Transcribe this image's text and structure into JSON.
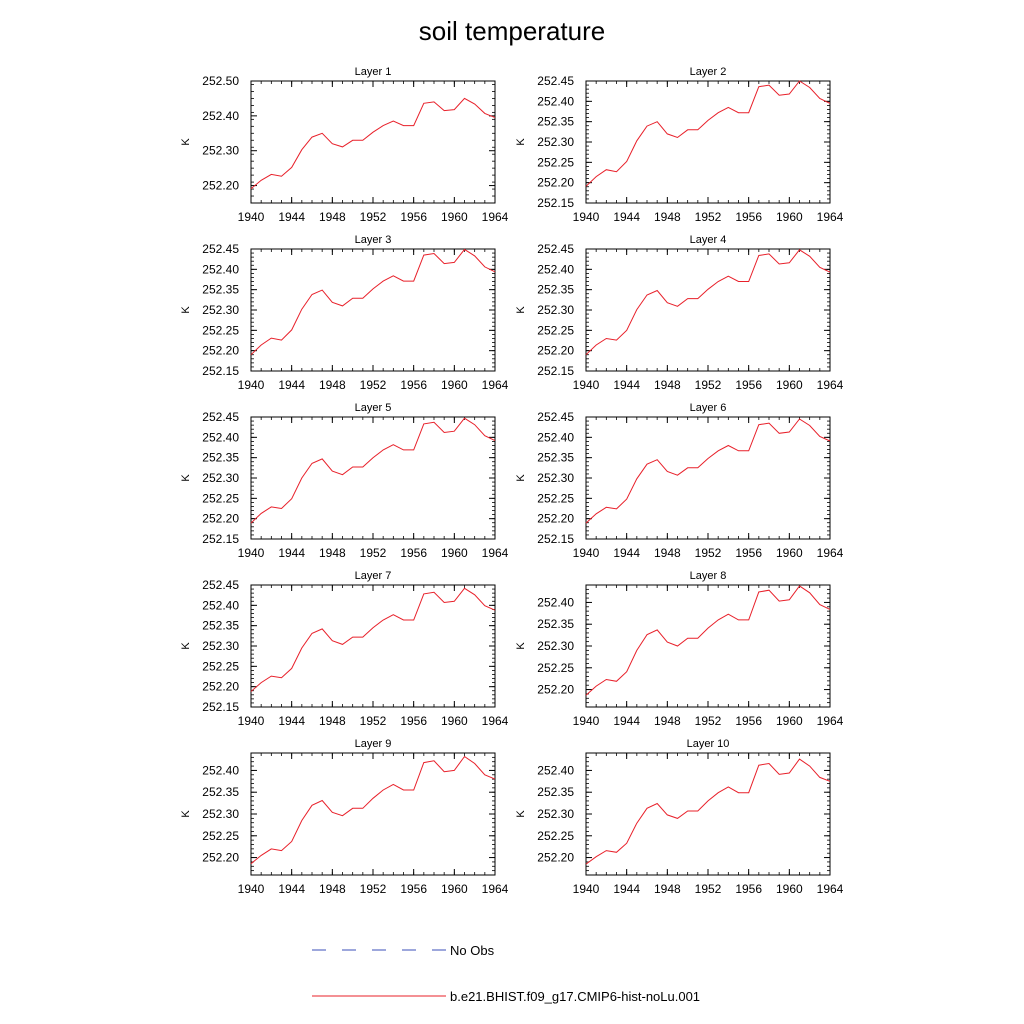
{
  "figure": {
    "title": "soil temperature",
    "legend": [
      {
        "label": "No Obs",
        "color": "#3b4fb8",
        "style": "dashed"
      },
      {
        "label": "b.e21.BHIST.f09_g17.CMIP6-hist-noLu.001",
        "color": "#e8202a",
        "style": "solid"
      }
    ]
  },
  "chart_data": [
    {
      "type": "line",
      "title": "Layer 1",
      "ylabel": "K",
      "xlim": [
        1940,
        1964
      ],
      "ylim": [
        252.15,
        252.5
      ],
      "xticks": [
        1940,
        1944,
        1948,
        1952,
        1956,
        1960,
        1964
      ],
      "yticks": [
        "252.20",
        "252.30",
        "252.40",
        "252.50"
      ],
      "x": [
        1940,
        1941,
        1942,
        1943,
        1944,
        1945,
        1946,
        1947,
        1948,
        1949,
        1950,
        1951,
        1952,
        1953,
        1954,
        1955,
        1956,
        1957,
        1958,
        1959,
        1960,
        1961,
        1962,
        1963,
        1964
      ],
      "series": [
        {
          "name": "b.e21.BHIST.f09_g17.CMIP6-hist-noLu.001",
          "values": [
            252.191,
            252.215,
            252.232,
            252.227,
            252.252,
            252.303,
            252.339,
            252.35,
            252.32,
            252.311,
            252.33,
            252.33,
            252.353,
            252.372,
            252.385,
            252.372,
            252.372,
            252.436,
            252.44,
            252.415,
            252.418,
            252.45,
            252.434,
            252.407,
            252.395
          ]
        }
      ]
    },
    {
      "type": "line",
      "title": "Layer 2",
      "ylabel": "K",
      "xlim": [
        1940,
        1964
      ],
      "ylim": [
        252.15,
        252.45
      ],
      "xticks": [
        1940,
        1944,
        1948,
        1952,
        1956,
        1960,
        1964
      ],
      "yticks": [
        "252.15",
        "252.20",
        "252.25",
        "252.30",
        "252.35",
        "252.40",
        "252.45"
      ],
      "x": [
        1940,
        1941,
        1942,
        1943,
        1944,
        1945,
        1946,
        1947,
        1948,
        1949,
        1950,
        1951,
        1952,
        1953,
        1954,
        1955,
        1956,
        1957,
        1958,
        1959,
        1960,
        1961,
        1962,
        1963,
        1964
      ],
      "series": [
        {
          "name": "b.e21.BHIST.f09_g17.CMIP6-hist-noLu.001",
          "values": [
            252.191,
            252.215,
            252.232,
            252.227,
            252.252,
            252.303,
            252.339,
            252.35,
            252.32,
            252.311,
            252.33,
            252.33,
            252.353,
            252.372,
            252.385,
            252.372,
            252.372,
            252.436,
            252.44,
            252.415,
            252.418,
            252.45,
            252.434,
            252.407,
            252.395
          ]
        }
      ]
    },
    {
      "type": "line",
      "title": "Layer 3",
      "ylabel": "K",
      "xlim": [
        1940,
        1964
      ],
      "ylim": [
        252.15,
        252.45
      ],
      "xticks": [
        1940,
        1944,
        1948,
        1952,
        1956,
        1960,
        1964
      ],
      "yticks": [
        "252.15",
        "252.20",
        "252.25",
        "252.30",
        "252.35",
        "252.40",
        "252.45"
      ],
      "x": [
        1940,
        1941,
        1942,
        1943,
        1944,
        1945,
        1946,
        1947,
        1948,
        1949,
        1950,
        1951,
        1952,
        1953,
        1954,
        1955,
        1956,
        1957,
        1958,
        1959,
        1960,
        1961,
        1962,
        1963,
        1964
      ],
      "series": [
        {
          "name": "b.e21.BHIST.f09_g17.CMIP6-hist-noLu.001",
          "values": [
            252.19,
            252.214,
            252.231,
            252.226,
            252.251,
            252.302,
            252.338,
            252.349,
            252.319,
            252.31,
            252.329,
            252.329,
            252.352,
            252.371,
            252.384,
            252.371,
            252.371,
            252.435,
            252.439,
            252.414,
            252.417,
            252.449,
            252.433,
            252.406,
            252.394
          ]
        }
      ]
    },
    {
      "type": "line",
      "title": "Layer 4",
      "ylabel": "K",
      "xlim": [
        1940,
        1964
      ],
      "ylim": [
        252.15,
        252.45
      ],
      "xticks": [
        1940,
        1944,
        1948,
        1952,
        1956,
        1960,
        1964
      ],
      "yticks": [
        "252.15",
        "252.20",
        "252.25",
        "252.30",
        "252.35",
        "252.40",
        "252.45"
      ],
      "x": [
        1940,
        1941,
        1942,
        1943,
        1944,
        1945,
        1946,
        1947,
        1948,
        1949,
        1950,
        1951,
        1952,
        1953,
        1954,
        1955,
        1956,
        1957,
        1958,
        1959,
        1960,
        1961,
        1962,
        1963,
        1964
      ],
      "series": [
        {
          "name": "b.e21.BHIST.f09_g17.CMIP6-hist-noLu.001",
          "values": [
            252.19,
            252.214,
            252.23,
            252.226,
            252.25,
            252.301,
            252.337,
            252.348,
            252.318,
            252.309,
            252.328,
            252.328,
            252.351,
            252.37,
            252.383,
            252.37,
            252.37,
            252.434,
            252.438,
            252.413,
            252.416,
            252.448,
            252.432,
            252.405,
            252.393
          ]
        }
      ]
    },
    {
      "type": "line",
      "title": "Layer 5",
      "ylabel": "K",
      "xlim": [
        1940,
        1964
      ],
      "ylim": [
        252.15,
        252.45
      ],
      "xticks": [
        1940,
        1944,
        1948,
        1952,
        1956,
        1960,
        1964
      ],
      "yticks": [
        "252.15",
        "252.20",
        "252.25",
        "252.30",
        "252.35",
        "252.40",
        "252.45"
      ],
      "x": [
        1940,
        1941,
        1942,
        1943,
        1944,
        1945,
        1946,
        1947,
        1948,
        1949,
        1950,
        1951,
        1952,
        1953,
        1954,
        1955,
        1956,
        1957,
        1958,
        1959,
        1960,
        1961,
        1962,
        1963,
        1964
      ],
      "series": [
        {
          "name": "b.e21.BHIST.f09_g17.CMIP6-hist-noLu.001",
          "values": [
            252.189,
            252.213,
            252.229,
            252.225,
            252.249,
            252.3,
            252.336,
            252.347,
            252.317,
            252.308,
            252.327,
            252.327,
            252.35,
            252.369,
            252.382,
            252.369,
            252.369,
            252.433,
            252.437,
            252.412,
            252.415,
            252.447,
            252.431,
            252.404,
            252.392
          ]
        }
      ]
    },
    {
      "type": "line",
      "title": "Layer 6",
      "ylabel": "K",
      "xlim": [
        1940,
        1964
      ],
      "ylim": [
        252.15,
        252.45
      ],
      "xticks": [
        1940,
        1944,
        1948,
        1952,
        1956,
        1960,
        1964
      ],
      "yticks": [
        "252.15",
        "252.20",
        "252.25",
        "252.30",
        "252.35",
        "252.40",
        "252.45"
      ],
      "x": [
        1940,
        1941,
        1942,
        1943,
        1944,
        1945,
        1946,
        1947,
        1948,
        1949,
        1950,
        1951,
        1952,
        1953,
        1954,
        1955,
        1956,
        1957,
        1958,
        1959,
        1960,
        1961,
        1962,
        1963,
        1964
      ],
      "series": [
        {
          "name": "b.e21.BHIST.f09_g17.CMIP6-hist-noLu.001",
          "values": [
            252.189,
            252.212,
            252.228,
            252.224,
            252.248,
            252.298,
            252.334,
            252.345,
            252.316,
            252.307,
            252.325,
            252.325,
            252.348,
            252.367,
            252.38,
            252.367,
            252.367,
            252.431,
            252.435,
            252.41,
            252.413,
            252.445,
            252.429,
            252.402,
            252.391
          ]
        }
      ]
    },
    {
      "type": "line",
      "title": "Layer 7",
      "ylabel": "K",
      "xlim": [
        1940,
        1964
      ],
      "ylim": [
        252.15,
        252.45
      ],
      "xticks": [
        1940,
        1944,
        1948,
        1952,
        1956,
        1960,
        1964
      ],
      "yticks": [
        "252.15",
        "252.20",
        "252.25",
        "252.30",
        "252.35",
        "252.40",
        "252.45"
      ],
      "x": [
        1940,
        1941,
        1942,
        1943,
        1944,
        1945,
        1946,
        1947,
        1948,
        1949,
        1950,
        1951,
        1952,
        1953,
        1954,
        1955,
        1956,
        1957,
        1958,
        1959,
        1960,
        1961,
        1962,
        1963,
        1964
      ],
      "series": [
        {
          "name": "b.e21.BHIST.f09_g17.CMIP6-hist-noLu.001",
          "values": [
            252.188,
            252.21,
            252.226,
            252.222,
            252.245,
            252.295,
            252.331,
            252.342,
            252.313,
            252.304,
            252.322,
            252.322,
            252.345,
            252.364,
            252.377,
            252.364,
            252.364,
            252.428,
            252.432,
            252.407,
            252.41,
            252.442,
            252.426,
            252.399,
            252.388
          ]
        }
      ]
    },
    {
      "type": "line",
      "title": "Layer 8",
      "ylabel": "K",
      "xlim": [
        1940,
        1964
      ],
      "ylim": [
        252.16,
        252.44
      ],
      "xticks": [
        1940,
        1944,
        1948,
        1952,
        1956,
        1960,
        1964
      ],
      "yticks": [
        "252.20",
        "252.25",
        "252.30",
        "252.35",
        "252.40"
      ],
      "x": [
        1940,
        1941,
        1942,
        1943,
        1944,
        1945,
        1946,
        1947,
        1948,
        1949,
        1950,
        1951,
        1952,
        1953,
        1954,
        1955,
        1956,
        1957,
        1958,
        1959,
        1960,
        1961,
        1962,
        1963,
        1964
      ],
      "series": [
        {
          "name": "b.e21.BHIST.f09_g17.CMIP6-hist-noLu.001",
          "values": [
            252.187,
            252.208,
            252.223,
            252.219,
            252.241,
            252.29,
            252.326,
            252.337,
            252.309,
            252.3,
            252.318,
            252.318,
            252.341,
            252.36,
            252.373,
            252.36,
            252.36,
            252.424,
            252.428,
            252.403,
            252.406,
            252.438,
            252.422,
            252.395,
            252.384
          ]
        }
      ]
    },
    {
      "type": "line",
      "title": "Layer 9",
      "ylabel": "K",
      "xlim": [
        1940,
        1964
      ],
      "ylim": [
        252.16,
        252.44
      ],
      "xticks": [
        1940,
        1944,
        1948,
        1952,
        1956,
        1960,
        1964
      ],
      "yticks": [
        "252.20",
        "252.25",
        "252.30",
        "252.35",
        "252.40"
      ],
      "x": [
        1940,
        1941,
        1942,
        1943,
        1944,
        1945,
        1946,
        1947,
        1948,
        1949,
        1950,
        1951,
        1952,
        1953,
        1954,
        1955,
        1956,
        1957,
        1958,
        1959,
        1960,
        1961,
        1962,
        1963,
        1964
      ],
      "series": [
        {
          "name": "b.e21.BHIST.f09_g17.CMIP6-hist-noLu.001",
          "values": [
            252.186,
            252.205,
            252.22,
            252.216,
            252.237,
            252.285,
            252.32,
            252.331,
            252.304,
            252.296,
            252.313,
            252.313,
            252.336,
            252.355,
            252.368,
            252.355,
            252.355,
            252.418,
            252.422,
            252.397,
            252.4,
            252.432,
            252.416,
            252.39,
            252.38
          ]
        }
      ]
    },
    {
      "type": "line",
      "title": "Layer 10",
      "ylabel": "K",
      "xlim": [
        1940,
        1964
      ],
      "ylim": [
        252.16,
        252.44
      ],
      "xticks": [
        1940,
        1944,
        1948,
        1952,
        1956,
        1960,
        1964
      ],
      "yticks": [
        "252.20",
        "252.25",
        "252.30",
        "252.35",
        "252.40"
      ],
      "x": [
        1940,
        1941,
        1942,
        1943,
        1944,
        1945,
        1946,
        1947,
        1948,
        1949,
        1950,
        1951,
        1952,
        1953,
        1954,
        1955,
        1956,
        1957,
        1958,
        1959,
        1960,
        1961,
        1962,
        1963,
        1964
      ],
      "series": [
        {
          "name": "b.e21.BHIST.f09_g17.CMIP6-hist-noLu.001",
          "values": [
            252.185,
            252.202,
            252.216,
            252.212,
            252.233,
            252.279,
            252.313,
            252.324,
            252.298,
            252.29,
            252.307,
            252.307,
            252.33,
            252.349,
            252.362,
            252.349,
            252.349,
            252.412,
            252.416,
            252.391,
            252.394,
            252.426,
            252.41,
            252.384,
            252.375
          ]
        }
      ]
    }
  ]
}
